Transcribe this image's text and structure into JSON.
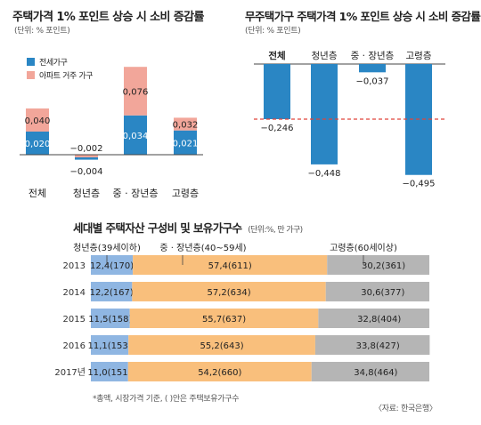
{
  "chart_data": [
    {
      "type": "bar",
      "title": "주택가격 1% 포인트 상승 시 소비 증감률",
      "unit_note": "(단위: % 포인트)",
      "categories": [
        "전체",
        "청년층",
        "중 · 장년층",
        "고령층"
      ],
      "series": [
        {
          "name": "전세가구",
          "values": [
            0.02,
            -0.004,
            0.034,
            0.021
          ],
          "labels": [
            "0,020",
            "−0,004",
            "0,034",
            "0,021"
          ],
          "color": "#2a86c4"
        },
        {
          "name": "아파트 거주 가구",
          "values": [
            0.04,
            -0.002,
            0.076,
            0.032
          ],
          "labels": [
            "0,040",
            "−0,002",
            "0,076",
            "0,032"
          ],
          "color": "#f2a69a"
        }
      ],
      "stacked": true
    },
    {
      "type": "bar",
      "title": "무주택가구 주택가격 1% 포인트 상승 시 소비 증감률",
      "unit_note": "(단위: % 포인트)",
      "categories": [
        "전체",
        "청년층",
        "중 · 장년층",
        "고령층"
      ],
      "values": [
        -0.246,
        -0.448,
        -0.037,
        -0.495
      ],
      "labels": [
        "−0,246",
        "−0,448",
        "−0,037",
        "−0,495"
      ],
      "reference_line": -0.246,
      "color": "#2a86c4"
    },
    {
      "type": "bar",
      "orientation": "horizontal",
      "stacked": true,
      "title": "세대별 주택자산 구성비 및 보유가구수",
      "unit_note": "(단위:%, 만 가구)",
      "categories": [
        "2013",
        "2014",
        "2015",
        "2016",
        "2017년"
      ],
      "series": [
        {
          "name": "청년층(39세이하)",
          "values": [
            12.4,
            12.2,
            11.5,
            11.1,
            11.0
          ],
          "labels": [
            "12,4(170)",
            "12,2(167)",
            "11,5(158)",
            "11,1(153)",
            "11,0(151)"
          ],
          "color": "#8fb6e2"
        },
        {
          "name": "중 · 장년층(40~59세)",
          "values": [
            57.4,
            57.2,
            55.7,
            55.2,
            54.2
          ],
          "labels": [
            "57,4(611)",
            "57,2(634)",
            "55,7(637)",
            "55,2(643)",
            "54,2(660)"
          ],
          "color": "#f9bf7c"
        },
        {
          "name": "고령층(60세이상)",
          "values": [
            30.2,
            30.6,
            32.8,
            33.8,
            34.8
          ],
          "labels": [
            "30,2(361)",
            "30,6(377)",
            "32,8(404)",
            "33,8(427)",
            "34,8(464)"
          ],
          "color": "#b5b5b5"
        }
      ],
      "footnote": "*총액, 시장가격 기준, (  )안은 주택보유가구수",
      "source": "〈자료: 한국은행〉"
    }
  ]
}
